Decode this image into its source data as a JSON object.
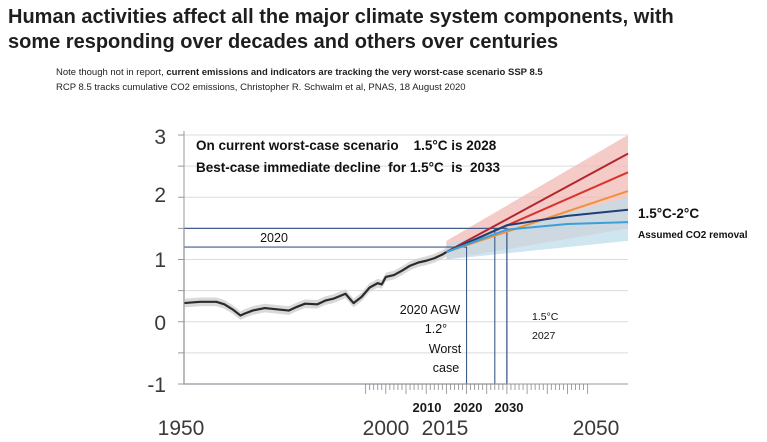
{
  "header": {
    "title_line1": "Human activities affect all the major climate system components, with",
    "title_line2": "some responding over decades and others over centuries",
    "note_line1_prefix": "Note though not in report, ",
    "note_line1_bold": "current emissions and indicators are tracking the very worst-case scenario SSP 8.5",
    "note_line2": "RCP 8.5 tracks cumulative CO2 emissions, Christopher R. Schwalm et al, PNAS, 18 August 2020"
  },
  "chart_data": {
    "type": "line",
    "title": "",
    "xlabel": "",
    "ylabel": "",
    "xlim": [
      1950,
      2060
    ],
    "ylim": [
      -1,
      3
    ],
    "y_ticks": [
      "3",
      "2",
      "1",
      "0",
      "-1"
    ],
    "x_tick_labels_large": [
      "1950",
      "2000",
      "2015",
      "2050"
    ],
    "x_tick_labels_small": [
      "2010",
      "2020",
      "2030"
    ],
    "grid": "horizontal",
    "colors": {
      "observed": "#2b2b2b",
      "ssp585": "#b3262e",
      "ssp370": "#d9352f",
      "ssp245": "#f1913b",
      "ssp126": "#1f3f78",
      "ssp119": "#3aa0d8",
      "uncertainty_high": "#f2b9b6",
      "uncertainty_low": "#bfdcea",
      "reference_box": "#3c5a8a"
    },
    "observed": {
      "x": [
        1950,
        1954,
        1958,
        1960,
        1962,
        1964,
        1965,
        1967,
        1970,
        1973,
        1976,
        1978,
        1980,
        1983,
        1985,
        1987,
        1990,
        1992,
        1994,
        1996,
        1998,
        1999,
        2000,
        2002,
        2004,
        2006,
        2008,
        2010,
        2012,
        2014,
        2015
      ],
      "y": [
        0.3,
        0.32,
        0.32,
        0.28,
        0.2,
        0.1,
        0.13,
        0.18,
        0.22,
        0.2,
        0.18,
        0.24,
        0.29,
        0.28,
        0.34,
        0.37,
        0.45,
        0.3,
        0.4,
        0.55,
        0.62,
        0.6,
        0.72,
        0.75,
        0.82,
        0.9,
        0.95,
        0.98,
        1.02,
        1.08,
        1.12
      ]
    },
    "series": [
      {
        "key": "ssp585",
        "x": [
          2015,
          2060
        ],
        "y": [
          1.12,
          2.7
        ]
      },
      {
        "key": "ssp370",
        "x": [
          2015,
          2060
        ],
        "y": [
          1.12,
          2.4
        ]
      },
      {
        "key": "ssp245",
        "x": [
          2015,
          2060
        ],
        "y": [
          1.12,
          2.1
        ]
      },
      {
        "key": "ssp126",
        "x": [
          2015,
          2030,
          2045,
          2060
        ],
        "y": [
          1.12,
          1.55,
          1.7,
          1.8
        ]
      },
      {
        "key": "ssp119",
        "x": [
          2015,
          2030,
          2045,
          2060
        ],
        "y": [
          1.12,
          1.48,
          1.57,
          1.6
        ]
      }
    ],
    "bands": [
      {
        "key": "uncertainty_high",
        "x": [
          2015,
          2060
        ],
        "y_low": [
          1.0,
          1.5
        ],
        "y_high": [
          1.3,
          3.0
        ]
      },
      {
        "key": "uncertainty_low",
        "x": [
          2015,
          2060
        ],
        "y_low": [
          1.0,
          1.3
        ],
        "y_high": [
          1.25,
          2.0
        ]
      }
    ],
    "reference_box": {
      "x": [
        1950,
        2030
      ],
      "y": [
        -1,
        1.5
      ]
    },
    "reference_lines": [
      {
        "axis": "y",
        "value": 1.2,
        "x_from": 1950,
        "x_to": 2020
      },
      {
        "axis": "x",
        "value": 2020,
        "y_from": -1,
        "y_to": 1.2
      },
      {
        "axis": "x",
        "value": 2027,
        "y_from": -1,
        "y_to": 1.5
      },
      {
        "axis": "x",
        "value": 2030,
        "y_from": -1,
        "y_to": 1.5
      }
    ],
    "annotations": {
      "scenario_line1": "On current worst-case scenario    1.5°C is 2028",
      "scenario_line2": "Best-case immediate decline  for 1.5°C  is  2033",
      "label_2020": "2020",
      "agw_line1": "2020 AGW",
      "agw_line2": "1.2°",
      "agw_line3": "Worst",
      "agw_line4": "case",
      "label_15c": "1.5°C",
      "label_2027": "2027",
      "range_label": "1.5°C-2°C",
      "removal_label": "Assumed CO2 removal"
    }
  }
}
